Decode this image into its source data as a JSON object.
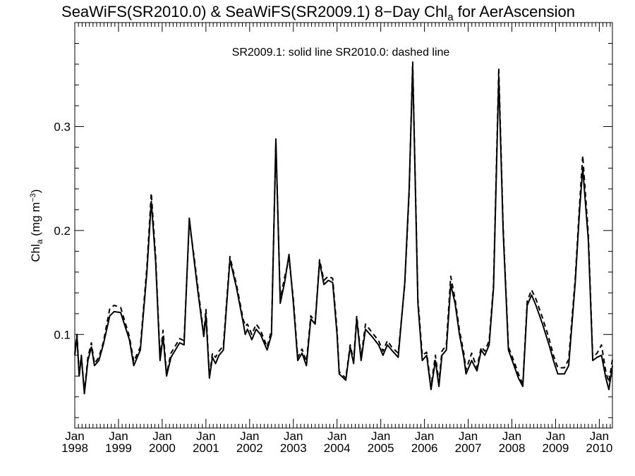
{
  "chart_data": {
    "type": "line",
    "title_main": "SeaWiFS(SR2010.0) & SeaWiFS(SR2009.1) 8−Day Chl",
    "title_sub": "a",
    "title_tail": " for AerAscension",
    "annotation": "SR2009.1: solid line   SR2010.0: dashed line",
    "ylabel_main": "Chl",
    "ylabel_sub": "a",
    "ylabel_unit": " (mg m",
    "ylabel_sup": "−3",
    "ylabel_close": ")",
    "xlim": [
      1998.0,
      2010.3
    ],
    "ylim": [
      0.01,
      0.4
    ],
    "y_ticks": [
      0.1,
      0.2,
      0.3
    ],
    "y_tick_labels": [
      "0.1",
      "0.2",
      "0.3"
    ],
    "x_ticks": [
      1998,
      1999,
      2000,
      2001,
      2002,
      2003,
      2004,
      2005,
      2006,
      2007,
      2008,
      2009,
      2010
    ],
    "x_tick_month": "Jan",
    "x_tick_years": [
      "1998",
      "1999",
      "2000",
      "2001",
      "2002",
      "2003",
      "2004",
      "2005",
      "2006",
      "2007",
      "2008",
      "2009",
      "2010"
    ],
    "series": [
      {
        "name": "SR2009.1",
        "style": "solid",
        "points": [
          [
            1998.0,
            0.08
          ],
          [
            1998.05,
            0.098
          ],
          [
            1998.1,
            0.06
          ],
          [
            1998.15,
            0.079
          ],
          [
            1998.22,
            0.043
          ],
          [
            1998.3,
            0.075
          ],
          [
            1998.38,
            0.088
          ],
          [
            1998.45,
            0.07
          ],
          [
            1998.55,
            0.075
          ],
          [
            1998.65,
            0.09
          ],
          [
            1998.8,
            0.118
          ],
          [
            1998.9,
            0.122
          ],
          [
            1999.05,
            0.121
          ],
          [
            1999.25,
            0.095
          ],
          [
            1999.35,
            0.07
          ],
          [
            1999.5,
            0.085
          ],
          [
            1999.65,
            0.16
          ],
          [
            1999.75,
            0.228
          ],
          [
            1999.85,
            0.17
          ],
          [
            1999.95,
            0.075
          ],
          [
            2000.02,
            0.098
          ],
          [
            2000.1,
            0.06
          ],
          [
            2000.2,
            0.078
          ],
          [
            2000.3,
            0.085
          ],
          [
            2000.4,
            0.092
          ],
          [
            2000.5,
            0.09
          ],
          [
            2000.62,
            0.212
          ],
          [
            2000.72,
            0.175
          ],
          [
            2000.82,
            0.14
          ],
          [
            2000.95,
            0.098
          ],
          [
            2001.0,
            0.118
          ],
          [
            2001.08,
            0.058
          ],
          [
            2001.15,
            0.078
          ],
          [
            2001.22,
            0.072
          ],
          [
            2001.3,
            0.08
          ],
          [
            2001.4,
            0.085
          ],
          [
            2001.55,
            0.172
          ],
          [
            2001.7,
            0.145
          ],
          [
            2001.85,
            0.112
          ],
          [
            2001.9,
            0.1
          ],
          [
            2001.95,
            0.105
          ],
          [
            2002.05,
            0.095
          ],
          [
            2002.15,
            0.105
          ],
          [
            2002.25,
            0.1
          ],
          [
            2002.4,
            0.085
          ],
          [
            2002.5,
            0.1
          ],
          [
            2002.6,
            0.288
          ],
          [
            2002.7,
            0.13
          ],
          [
            2002.8,
            0.15
          ],
          [
            2002.9,
            0.177
          ],
          [
            2003.0,
            0.13
          ],
          [
            2003.1,
            0.075
          ],
          [
            2003.2,
            0.082
          ],
          [
            2003.3,
            0.07
          ],
          [
            2003.4,
            0.115
          ],
          [
            2003.5,
            0.11
          ],
          [
            2003.6,
            0.17
          ],
          [
            2003.7,
            0.148
          ],
          [
            2003.8,
            0.152
          ],
          [
            2003.9,
            0.15
          ],
          [
            2004.0,
            0.1
          ],
          [
            2004.05,
            0.062
          ],
          [
            2004.2,
            0.056
          ],
          [
            2004.3,
            0.088
          ],
          [
            2004.38,
            0.072
          ],
          [
            2004.45,
            0.115
          ],
          [
            2004.55,
            0.075
          ],
          [
            2004.65,
            0.105
          ],
          [
            2004.8,
            0.098
          ],
          [
            2004.95,
            0.09
          ],
          [
            2005.05,
            0.08
          ],
          [
            2005.15,
            0.09
          ],
          [
            2005.25,
            0.085
          ],
          [
            2005.4,
            0.078
          ],
          [
            2005.55,
            0.15
          ],
          [
            2005.65,
            0.24
          ],
          [
            2005.73,
            0.358
          ],
          [
            2005.85,
            0.13
          ],
          [
            2005.95,
            0.075
          ],
          [
            2006.05,
            0.08
          ],
          [
            2006.15,
            0.047
          ],
          [
            2006.25,
            0.075
          ],
          [
            2006.33,
            0.05
          ],
          [
            2006.4,
            0.08
          ],
          [
            2006.5,
            0.085
          ],
          [
            2006.6,
            0.148
          ],
          [
            2006.7,
            0.13
          ],
          [
            2006.8,
            0.1
          ],
          [
            2006.9,
            0.078
          ],
          [
            2006.95,
            0.062
          ],
          [
            2007.08,
            0.075
          ],
          [
            2007.2,
            0.065
          ],
          [
            2007.3,
            0.085
          ],
          [
            2007.38,
            0.08
          ],
          [
            2007.48,
            0.09
          ],
          [
            2007.58,
            0.145
          ],
          [
            2007.7,
            0.348
          ],
          [
            2007.8,
            0.2
          ],
          [
            2007.92,
            0.085
          ],
          [
            2008.05,
            0.07
          ],
          [
            2008.15,
            0.058
          ],
          [
            2008.25,
            0.05
          ],
          [
            2008.35,
            0.128
          ],
          [
            2008.45,
            0.138
          ],
          [
            2008.55,
            0.128
          ],
          [
            2008.7,
            0.11
          ],
          [
            2008.85,
            0.09
          ],
          [
            2008.95,
            0.075
          ],
          [
            2009.05,
            0.062
          ],
          [
            2009.2,
            0.062
          ],
          [
            2009.3,
            0.07
          ],
          [
            2009.45,
            0.15
          ],
          [
            2009.55,
            0.22
          ],
          [
            2009.62,
            0.26
          ],
          [
            2009.75,
            0.19
          ],
          [
            2009.85,
            0.075
          ],
          [
            2009.95,
            0.078
          ],
          [
            2010.05,
            0.08
          ],
          [
            2010.15,
            0.058
          ],
          [
            2010.22,
            0.047
          ],
          [
            2010.3,
            0.07
          ]
        ]
      },
      {
        "name": "SR2010.0",
        "style": "dashed",
        "points": [
          [
            1998.0,
            0.082
          ],
          [
            1998.05,
            0.1
          ],
          [
            1998.1,
            0.062
          ],
          [
            1998.15,
            0.08
          ],
          [
            1998.22,
            0.045
          ],
          [
            1998.3,
            0.078
          ],
          [
            1998.38,
            0.092
          ],
          [
            1998.45,
            0.072
          ],
          [
            1998.55,
            0.078
          ],
          [
            1998.65,
            0.092
          ],
          [
            1998.8,
            0.125
          ],
          [
            1998.9,
            0.128
          ],
          [
            1999.05,
            0.126
          ],
          [
            1999.25,
            0.098
          ],
          [
            1999.35,
            0.074
          ],
          [
            1999.5,
            0.088
          ],
          [
            1999.65,
            0.165
          ],
          [
            1999.75,
            0.236
          ],
          [
            1999.85,
            0.175
          ],
          [
            1999.95,
            0.078
          ],
          [
            2000.02,
            0.104
          ],
          [
            2000.1,
            0.062
          ],
          [
            2000.2,
            0.082
          ],
          [
            2000.3,
            0.089
          ],
          [
            2000.4,
            0.096
          ],
          [
            2000.5,
            0.094
          ],
          [
            2000.62,
            0.208
          ],
          [
            2000.72,
            0.178
          ],
          [
            2000.82,
            0.144
          ],
          [
            2000.95,
            0.1
          ],
          [
            2001.0,
            0.124
          ],
          [
            2001.08,
            0.06
          ],
          [
            2001.15,
            0.082
          ],
          [
            2001.22,
            0.078
          ],
          [
            2001.3,
            0.084
          ],
          [
            2001.4,
            0.089
          ],
          [
            2001.55,
            0.175
          ],
          [
            2001.7,
            0.148
          ],
          [
            2001.85,
            0.115
          ],
          [
            2001.9,
            0.108
          ],
          [
            2001.95,
            0.11
          ],
          [
            2002.05,
            0.1
          ],
          [
            2002.15,
            0.11
          ],
          [
            2002.25,
            0.104
          ],
          [
            2002.4,
            0.088
          ],
          [
            2002.5,
            0.104
          ],
          [
            2002.6,
            0.284
          ],
          [
            2002.7,
            0.134
          ],
          [
            2002.8,
            0.155
          ],
          [
            2002.9,
            0.173
          ],
          [
            2003.0,
            0.134
          ],
          [
            2003.1,
            0.078
          ],
          [
            2003.2,
            0.086
          ],
          [
            2003.3,
            0.074
          ],
          [
            2003.4,
            0.118
          ],
          [
            2003.5,
            0.112
          ],
          [
            2003.6,
            0.172
          ],
          [
            2003.7,
            0.152
          ],
          [
            2003.8,
            0.156
          ],
          [
            2003.9,
            0.154
          ],
          [
            2004.0,
            0.104
          ],
          [
            2004.05,
            0.064
          ],
          [
            2004.2,
            0.058
          ],
          [
            2004.3,
            0.09
          ],
          [
            2004.38,
            0.075
          ],
          [
            2004.45,
            0.118
          ],
          [
            2004.55,
            0.078
          ],
          [
            2004.65,
            0.11
          ],
          [
            2004.8,
            0.102
          ],
          [
            2004.95,
            0.094
          ],
          [
            2005.05,
            0.084
          ],
          [
            2005.15,
            0.094
          ],
          [
            2005.25,
            0.088
          ],
          [
            2005.4,
            0.082
          ],
          [
            2005.55,
            0.148
          ],
          [
            2005.65,
            0.236
          ],
          [
            2005.73,
            0.362
          ],
          [
            2005.85,
            0.134
          ],
          [
            2005.95,
            0.08
          ],
          [
            2006.05,
            0.083
          ],
          [
            2006.15,
            0.05
          ],
          [
            2006.25,
            0.08
          ],
          [
            2006.33,
            0.054
          ],
          [
            2006.4,
            0.084
          ],
          [
            2006.5,
            0.09
          ],
          [
            2006.6,
            0.156
          ],
          [
            2006.7,
            0.134
          ],
          [
            2006.8,
            0.104
          ],
          [
            2006.9,
            0.082
          ],
          [
            2006.95,
            0.066
          ],
          [
            2007.08,
            0.082
          ],
          [
            2007.2,
            0.068
          ],
          [
            2007.3,
            0.088
          ],
          [
            2007.38,
            0.084
          ],
          [
            2007.48,
            0.094
          ],
          [
            2007.58,
            0.148
          ],
          [
            2007.7,
            0.356
          ],
          [
            2007.8,
            0.204
          ],
          [
            2007.92,
            0.088
          ],
          [
            2008.05,
            0.074
          ],
          [
            2008.15,
            0.062
          ],
          [
            2008.25,
            0.052
          ],
          [
            2008.35,
            0.132
          ],
          [
            2008.45,
            0.143
          ],
          [
            2008.55,
            0.134
          ],
          [
            2008.7,
            0.116
          ],
          [
            2008.85,
            0.096
          ],
          [
            2008.95,
            0.08
          ],
          [
            2009.05,
            0.068
          ],
          [
            2009.2,
            0.068
          ],
          [
            2009.3,
            0.076
          ],
          [
            2009.45,
            0.154
          ],
          [
            2009.55,
            0.226
          ],
          [
            2009.62,
            0.272
          ],
          [
            2009.75,
            0.196
          ],
          [
            2009.85,
            0.078
          ],
          [
            2009.95,
            0.082
          ],
          [
            2010.05,
            0.09
          ],
          [
            2010.15,
            0.064
          ],
          [
            2010.22,
            0.054
          ],
          [
            2010.3,
            0.076
          ]
        ]
      }
    ]
  }
}
